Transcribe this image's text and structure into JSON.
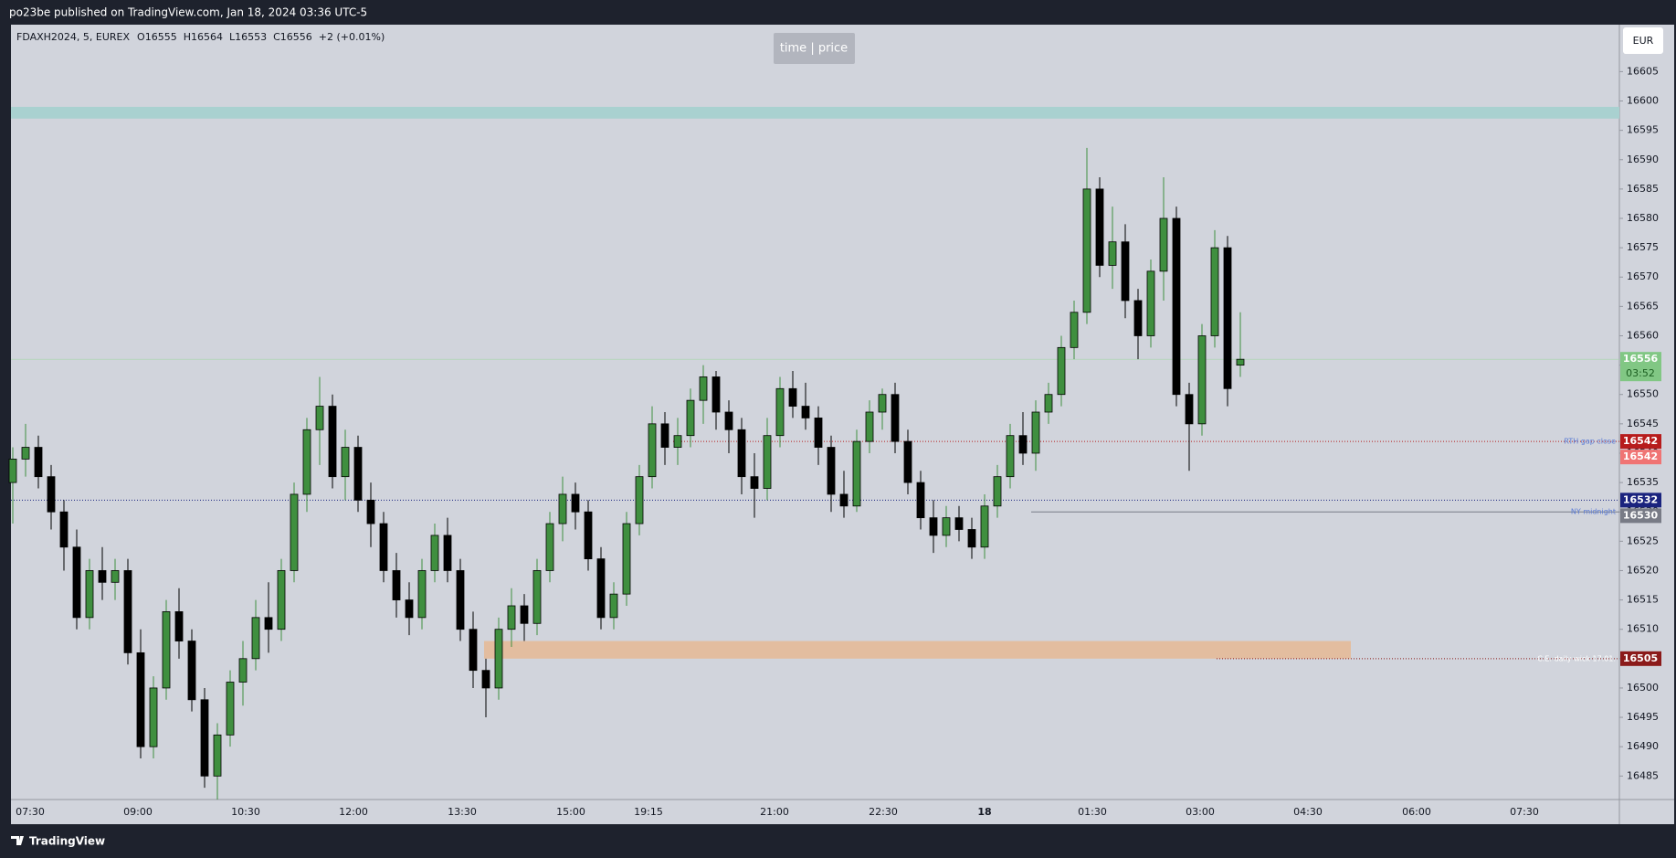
{
  "header": {
    "publisher": "po23be published on TradingView.com, Jan 18, 2024 03:36 UTC-5"
  },
  "footer": {
    "brand": "TradingView"
  },
  "toolbar": {
    "mode_button": "time | price",
    "currency": "EUR"
  },
  "chart_data": {
    "type": "candlestick",
    "symbol": "FDAXH2024, 5, EUREX",
    "ohlc_labels": [
      "O16555",
      "H16564",
      "L16553",
      "C16556"
    ],
    "change": "+2 (+0.01%)",
    "up_color": "#3f8f3f",
    "down_color": "#000000",
    "grid": false,
    "ylim": [
      16481,
      16613
    ],
    "yticks": [
      16485,
      16490,
      16495,
      16500,
      16505,
      16510,
      16515,
      16520,
      16525,
      16530,
      16535,
      16540,
      16545,
      16550,
      16555,
      16560,
      16565,
      16570,
      16575,
      16580,
      16585,
      16590,
      16595,
      16600,
      16605
    ],
    "xtick_labels": [
      "07:30",
      "09:00",
      "10:30",
      "12:00",
      "13:30",
      "15:00",
      "19:15",
      "21:00",
      "22:30",
      "18",
      "01:30",
      "03:00",
      "04:30",
      "06:00",
      "07:30"
    ],
    "candles": [
      [
        16535,
        16541,
        16528,
        16539
      ],
      [
        16539,
        16545,
        16536,
        16541
      ],
      [
        16541,
        16543,
        16534,
        16536
      ],
      [
        16536,
        16538,
        16527,
        16530
      ],
      [
        16530,
        16532,
        16520,
        16524
      ],
      [
        16524,
        16527,
        16510,
        16512
      ],
      [
        16512,
        16522,
        16510,
        16520
      ],
      [
        16520,
        16524,
        16515,
        16518
      ],
      [
        16518,
        16522,
        16515,
        16520
      ],
      [
        16520,
        16522,
        16504,
        16506
      ],
      [
        16506,
        16510,
        16488,
        16490
      ],
      [
        16490,
        16502,
        16488,
        16500
      ],
      [
        16500,
        16515,
        16498,
        16513
      ],
      [
        16513,
        16517,
        16505,
        16508
      ],
      [
        16508,
        16510,
        16496,
        16498
      ],
      [
        16498,
        16500,
        16483,
        16485
      ],
      [
        16485,
        16494,
        16481,
        16492
      ],
      [
        16492,
        16503,
        16490,
        16501
      ],
      [
        16501,
        16508,
        16497,
        16505
      ],
      [
        16505,
        16515,
        16503,
        16512
      ],
      [
        16512,
        16518,
        16506,
        16510
      ],
      [
        16510,
        16522,
        16508,
        16520
      ],
      [
        16520,
        16535,
        16518,
        16533
      ],
      [
        16533,
        16546,
        16530,
        16544
      ],
      [
        16544,
        16553,
        16538,
        16548
      ],
      [
        16548,
        16550,
        16534,
        16536
      ],
      [
        16536,
        16544,
        16532,
        16541
      ],
      [
        16541,
        16543,
        16530,
        16532
      ],
      [
        16532,
        16535,
        16524,
        16528
      ],
      [
        16528,
        16530,
        16518,
        16520
      ],
      [
        16520,
        16523,
        16512,
        16515
      ],
      [
        16515,
        16518,
        16509,
        16512
      ],
      [
        16512,
        16522,
        16510,
        16520
      ],
      [
        16520,
        16528,
        16518,
        16526
      ],
      [
        16526,
        16529,
        16518,
        16520
      ],
      [
        16520,
        16522,
        16508,
        16510
      ],
      [
        16510,
        16513,
        16500,
        16503
      ],
      [
        16503,
        16505,
        16495,
        16500
      ],
      [
        16500,
        16512,
        16498,
        16510
      ],
      [
        16510,
        16517,
        16507,
        16514
      ],
      [
        16514,
        16516,
        16508,
        16511
      ],
      [
        16511,
        16522,
        16509,
        16520
      ],
      [
        16520,
        16530,
        16518,
        16528
      ],
      [
        16528,
        16536,
        16525,
        16533
      ],
      [
        16533,
        16535,
        16527,
        16530
      ],
      [
        16530,
        16532,
        16520,
        16522
      ],
      [
        16522,
        16524,
        16510,
        16512
      ],
      [
        16512,
        16518,
        16510,
        16516
      ],
      [
        16516,
        16530,
        16514,
        16528
      ],
      [
        16528,
        16538,
        16526,
        16536
      ],
      [
        16536,
        16548,
        16534,
        16545
      ],
      [
        16545,
        16547,
        16538,
        16541
      ],
      [
        16541,
        16546,
        16538,
        16543
      ],
      [
        16543,
        16551,
        16541,
        16549
      ],
      [
        16549,
        16555,
        16545,
        16553
      ],
      [
        16553,
        16554,
        16544,
        16547
      ],
      [
        16547,
        16549,
        16540,
        16544
      ],
      [
        16544,
        16546,
        16533,
        16536
      ],
      [
        16536,
        16540,
        16529,
        16534
      ],
      [
        16534,
        16546,
        16532,
        16543
      ],
      [
        16543,
        16553,
        16541,
        16551
      ],
      [
        16551,
        16554,
        16546,
        16548
      ],
      [
        16548,
        16552,
        16544,
        16546
      ],
      [
        16546,
        16548,
        16538,
        16541
      ],
      [
        16541,
        16543,
        16530,
        16533
      ],
      [
        16533,
        16537,
        16529,
        16531
      ],
      [
        16531,
        16544,
        16530,
        16542
      ],
      [
        16542,
        16549,
        16540,
        16547
      ],
      [
        16547,
        16551,
        16544,
        16550
      ],
      [
        16550,
        16552,
        16540,
        16542
      ],
      [
        16542,
        16544,
        16533,
        16535
      ],
      [
        16535,
        16537,
        16527,
        16529
      ],
      [
        16529,
        16532,
        16523,
        16526
      ],
      [
        16526,
        16531,
        16524,
        16529
      ],
      [
        16529,
        16531,
        16525,
        16527
      ],
      [
        16527,
        16529,
        16522,
        16524
      ],
      [
        16524,
        16533,
        16522,
        16531
      ],
      [
        16531,
        16538,
        16529,
        16536
      ],
      [
        16536,
        16545,
        16534,
        16543
      ],
      [
        16543,
        16547,
        16538,
        16540
      ],
      [
        16540,
        16549,
        16537,
        16547
      ],
      [
        16547,
        16552,
        16545,
        16550
      ],
      [
        16550,
        16560,
        16548,
        16558
      ],
      [
        16558,
        16566,
        16556,
        16564
      ],
      [
        16564,
        16592,
        16562,
        16585
      ],
      [
        16585,
        16587,
        16570,
        16572
      ],
      [
        16572,
        16582,
        16568,
        16576
      ],
      [
        16576,
        16579,
        16563,
        16566
      ],
      [
        16566,
        16568,
        16556,
        16560
      ],
      [
        16560,
        16573,
        16558,
        16571
      ],
      [
        16571,
        16587,
        16566,
        16580
      ],
      [
        16580,
        16582,
        16548,
        16550
      ],
      [
        16550,
        16552,
        16537,
        16545
      ],
      [
        16545,
        16562,
        16543,
        16560
      ],
      [
        16560,
        16578,
        16558,
        16575
      ],
      [
        16575,
        16577,
        16548,
        16551
      ],
      [
        16555,
        16564,
        16553,
        16556
      ]
    ],
    "zones": [
      {
        "from": 16597,
        "to": 16599,
        "color": "#a9d1d0"
      },
      {
        "from": 16505,
        "to": 16508,
        "color": "#e3bd9f"
      }
    ],
    "levels": [
      {
        "name": "RTH gap close",
        "value": 16542,
        "color": "#b71c1c"
      },
      {
        "name": "NY midnight",
        "value": 16530,
        "color": "#787b86"
      },
      {
        "name": "C.E. daily wick 17.01.",
        "value": 16505,
        "color": "#8b1a1a"
      },
      {
        "value": 16532,
        "color": "#1a237e"
      }
    ],
    "tags": [
      {
        "value": 16542,
        "color": "#f07474"
      },
      {
        "value": 16556,
        "color": "#81c784",
        "countdown": "03:52"
      }
    ]
  }
}
